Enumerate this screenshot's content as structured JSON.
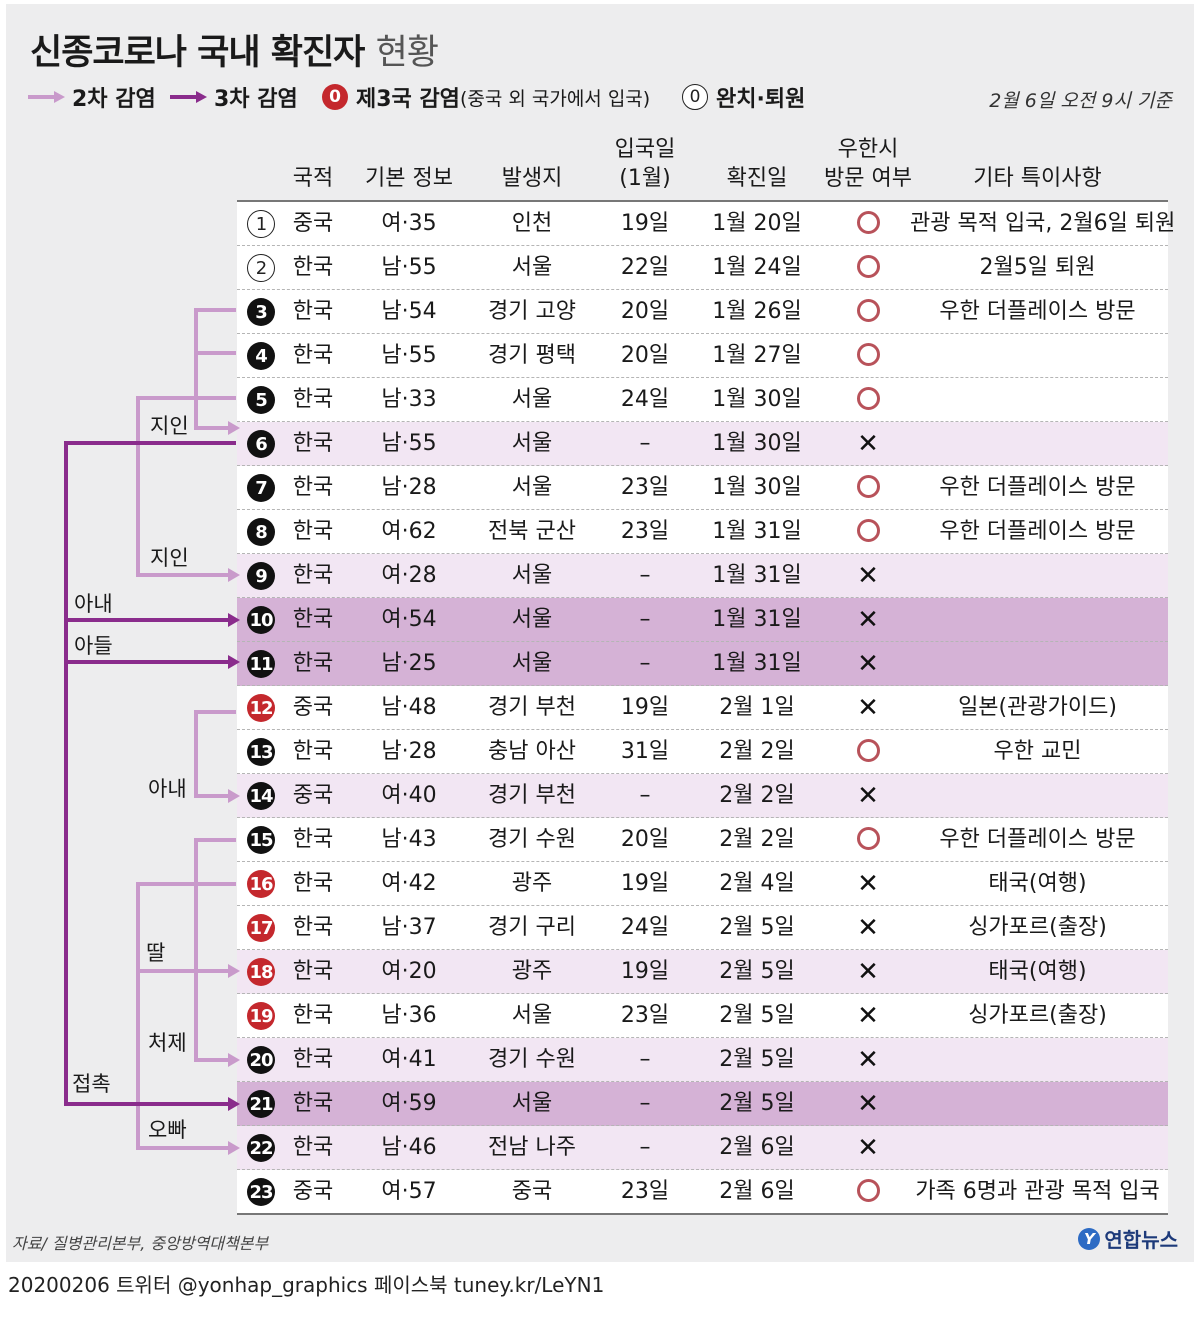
{
  "title": {
    "bold": "신종코로나 국내 확진자",
    "light": "현황"
  },
  "legend": {
    "second_infection": "2차 감염",
    "third_infection": "3차 감염",
    "third_country_num": "0",
    "third_country_label": "제3국 감염",
    "third_country_sub": "(중국 외 국가에서 입국)",
    "recovered_num": "0",
    "recovered_label": "완치·퇴원",
    "date_note": "2월 6일 오전 9시 기준",
    "colors": {
      "second": "#c99acb",
      "third": "#8a2c8c",
      "third_country": "#c4282d"
    }
  },
  "headers": {
    "nationality": "국적",
    "basic_info": "기본 정보",
    "location": "발생지",
    "entry_line1": "입국일",
    "entry_line2": "(1월)",
    "confirmed": "확진일",
    "wuhan_line1": "우한시",
    "wuhan_line2": "방문 여부",
    "notes": "기타 특이사항"
  },
  "rows": [
    {
      "no": "1",
      "badge": "hollow",
      "nat": "중국",
      "info": "여·35",
      "loc": "인천",
      "entry": "19일",
      "confirmed": "1월 20일",
      "wuhan": "O",
      "note": "관광 목적 입국, 2월6일 퇴원",
      "bg": "white"
    },
    {
      "no": "2",
      "badge": "hollow",
      "nat": "한국",
      "info": "남·55",
      "loc": "서울",
      "entry": "22일",
      "confirmed": "1월 24일",
      "wuhan": "O",
      "note": "2월5일 퇴원",
      "bg": "white"
    },
    {
      "no": "3",
      "badge": "solid",
      "nat": "한국",
      "info": "남·54",
      "loc": "경기 고양",
      "entry": "20일",
      "confirmed": "1월 26일",
      "wuhan": "O",
      "note": "우한 더플레이스 방문",
      "bg": "white"
    },
    {
      "no": "4",
      "badge": "solid",
      "nat": "한국",
      "info": "남·55",
      "loc": "경기 평택",
      "entry": "20일",
      "confirmed": "1월 27일",
      "wuhan": "O",
      "note": "",
      "bg": "white"
    },
    {
      "no": "5",
      "badge": "solid",
      "nat": "한국",
      "info": "남·33",
      "loc": "서울",
      "entry": "24일",
      "confirmed": "1월 30일",
      "wuhan": "O",
      "note": "",
      "bg": "white"
    },
    {
      "no": "6",
      "badge": "solid",
      "nat": "한국",
      "info": "남·55",
      "loc": "서울",
      "entry": "–",
      "confirmed": "1월 30일",
      "wuhan": "X",
      "note": "",
      "bg": "light"
    },
    {
      "no": "7",
      "badge": "solid",
      "nat": "한국",
      "info": "남·28",
      "loc": "서울",
      "entry": "23일",
      "confirmed": "1월 30일",
      "wuhan": "O",
      "note": "우한 더플레이스 방문",
      "bg": "white"
    },
    {
      "no": "8",
      "badge": "solid",
      "nat": "한국",
      "info": "여·62",
      "loc": "전북 군산",
      "entry": "23일",
      "confirmed": "1월 31일",
      "wuhan": "O",
      "note": "우한 더플레이스 방문",
      "bg": "white"
    },
    {
      "no": "9",
      "badge": "solid",
      "nat": "한국",
      "info": "여·28",
      "loc": "서울",
      "entry": "–",
      "confirmed": "1월 31일",
      "wuhan": "X",
      "note": "",
      "bg": "light"
    },
    {
      "no": "10",
      "badge": "solid",
      "nat": "한국",
      "info": "여·54",
      "loc": "서울",
      "entry": "–",
      "confirmed": "1월 31일",
      "wuhan": "X",
      "note": "",
      "bg": "dark"
    },
    {
      "no": "11",
      "badge": "solid",
      "nat": "한국",
      "info": "남·25",
      "loc": "서울",
      "entry": "–",
      "confirmed": "1월 31일",
      "wuhan": "X",
      "note": "",
      "bg": "dark"
    },
    {
      "no": "12",
      "badge": "red",
      "nat": "중국",
      "info": "남·48",
      "loc": "경기 부천",
      "entry": "19일",
      "confirmed": "2월 1일",
      "wuhan": "X",
      "note": "일본(관광가이드)",
      "bg": "white"
    },
    {
      "no": "13",
      "badge": "solid",
      "nat": "한국",
      "info": "남·28",
      "loc": "충남 아산",
      "entry": "31일",
      "confirmed": "2월 2일",
      "wuhan": "O",
      "note": "우한 교민",
      "bg": "white"
    },
    {
      "no": "14",
      "badge": "solid",
      "nat": "중국",
      "info": "여·40",
      "loc": "경기 부천",
      "entry": "–",
      "confirmed": "2월 2일",
      "wuhan": "X",
      "note": "",
      "bg": "light"
    },
    {
      "no": "15",
      "badge": "solid",
      "nat": "한국",
      "info": "남·43",
      "loc": "경기 수원",
      "entry": "20일",
      "confirmed": "2월 2일",
      "wuhan": "O",
      "note": "우한 더플레이스 방문",
      "bg": "white"
    },
    {
      "no": "16",
      "badge": "red",
      "nat": "한국",
      "info": "여·42",
      "loc": "광주",
      "entry": "19일",
      "confirmed": "2월 4일",
      "wuhan": "X",
      "note": "태국(여행)",
      "bg": "white"
    },
    {
      "no": "17",
      "badge": "red",
      "nat": "한국",
      "info": "남·37",
      "loc": "경기 구리",
      "entry": "24일",
      "confirmed": "2월 5일",
      "wuhan": "X",
      "note": "싱가포르(출장)",
      "bg": "white"
    },
    {
      "no": "18",
      "badge": "red",
      "nat": "한국",
      "info": "여·20",
      "loc": "광주",
      "entry": "19일",
      "confirmed": "2월 5일",
      "wuhan": "X",
      "note": "태국(여행)",
      "bg": "light"
    },
    {
      "no": "19",
      "badge": "red",
      "nat": "한국",
      "info": "남·36",
      "loc": "서울",
      "entry": "23일",
      "confirmed": "2월 5일",
      "wuhan": "X",
      "note": "싱가포르(출장)",
      "bg": "white"
    },
    {
      "no": "20",
      "badge": "solid",
      "nat": "한국",
      "info": "여·41",
      "loc": "경기 수원",
      "entry": "–",
      "confirmed": "2월 5일",
      "wuhan": "X",
      "note": "",
      "bg": "light"
    },
    {
      "no": "21",
      "badge": "solid",
      "nat": "한국",
      "info": "여·59",
      "loc": "서울",
      "entry": "–",
      "confirmed": "2월 5일",
      "wuhan": "X",
      "note": "",
      "bg": "dark"
    },
    {
      "no": "22",
      "badge": "solid",
      "nat": "한국",
      "info": "남·46",
      "loc": "전남 나주",
      "entry": "–",
      "confirmed": "2월 6일",
      "wuhan": "X",
      "note": "",
      "bg": "light"
    },
    {
      "no": "23",
      "badge": "solid",
      "nat": "중국",
      "info": "여·57",
      "loc": "중국",
      "entry": "23일",
      "confirmed": "2월 6일",
      "wuhan": "O",
      "note": "가족 6명과 관광 목적 입국",
      "bg": "white"
    }
  ],
  "relations": {
    "acquaintance_a": "지인",
    "acquaintance_b": "지인",
    "wife_a": "아내",
    "son": "아들",
    "wife_b": "아내",
    "daughter": "딸",
    "sister_in_law": "처제",
    "contact": "접촉",
    "older_brother": "오빠"
  },
  "source": "자료/ 질병관리본부, 중앙방역대책본부",
  "brand": "연합뉴스",
  "footer": "20200206   트위터 @yonhap_graphics   페이스북 tuney.kr/LeYN1"
}
